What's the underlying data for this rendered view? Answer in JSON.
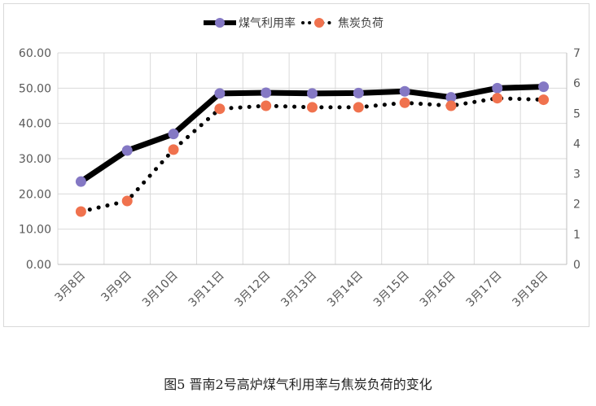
{
  "chart_data": {
    "type": "line",
    "categories": [
      "3月8日",
      "3月9日",
      "3月10日",
      "3月11日",
      "3月12日",
      "3月13日",
      "3月14日",
      "3月15日",
      "3月16日",
      "3月17日",
      "3月18日"
    ],
    "series": [
      {
        "name": "煤气利用率",
        "axis": "left",
        "style": "solid-thick",
        "color": "#000000",
        "marker_color": "#8478c4",
        "values": [
          23.5,
          32.3,
          37.0,
          48.5,
          48.7,
          48.5,
          48.6,
          49.1,
          47.4,
          50.0,
          50.4
        ]
      },
      {
        "name": "焦炭负荷",
        "axis": "right",
        "style": "dotted",
        "color": "#000000",
        "marker_color": "#f0724e",
        "values": [
          1.75,
          2.1,
          3.8,
          5.15,
          5.25,
          5.2,
          5.2,
          5.35,
          5.25,
          5.5,
          5.45
        ]
      }
    ],
    "y_left": {
      "ylim": [
        0,
        60
      ],
      "ticks": [
        "0.00",
        "10.00",
        "20.00",
        "30.00",
        "40.00",
        "50.00",
        "60.00"
      ]
    },
    "y_right": {
      "ylim": [
        0,
        7
      ],
      "ticks": [
        "0",
        "1",
        "2",
        "3",
        "4",
        "5",
        "6",
        "7"
      ]
    },
    "legend_position": "top-center",
    "grid": true
  },
  "caption": "图5   晋南2号高炉煤气利用率与焦炭负荷的变化"
}
